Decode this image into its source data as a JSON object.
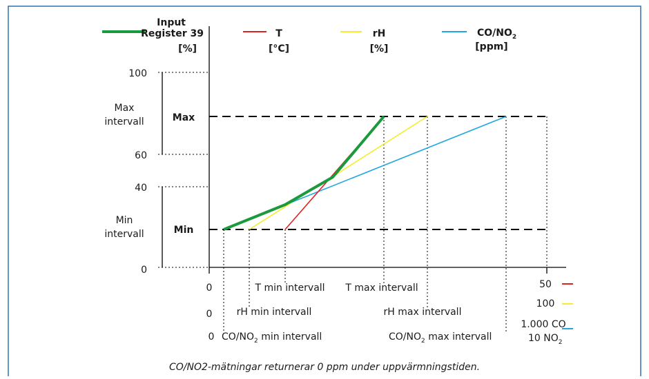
{
  "header": {
    "input_label": [
      "Input",
      "Register 39",
      "[%]"
    ],
    "t_label": [
      "T",
      "[°C]"
    ],
    "rh_label": [
      "rH",
      "[%]"
    ],
    "co_label_main": "CO/NO",
    "co_label_sub": "2",
    "co_unit": "[ppm]"
  },
  "y_axis": {
    "tick_100": "100",
    "tick_60": "60",
    "tick_40": "40",
    "tick_0": "0",
    "max_interval": [
      "Max",
      "intervall"
    ],
    "min_interval": [
      "Min",
      "intervall"
    ],
    "max_label": "Max",
    "min_label": "Min"
  },
  "x_axis": {
    "row1_zero": "0",
    "row2_zero": "0",
    "row3_zero": "0",
    "t_min": "T min intervall",
    "t_max": "T max intervall",
    "rh_min": "rH min intervall",
    "rh_max": "rH max intervall",
    "co_min_a": "CO/NO",
    "co_min_sub": "2",
    "co_min_b": " min intervall",
    "co_max_a": "CO/NO",
    "co_max_sub": "2",
    "co_max_b": " max intervall",
    "legend_t": "50",
    "legend_rh": "100",
    "legend_co1": "1.000 CO",
    "legend_co2a": "10 NO",
    "legend_co2sub": "2"
  },
  "caption": "CO/NO2-mätningar returnerar 0 ppm under uppvärmningstiden.",
  "colors": {
    "green": "#1a9a3c",
    "red": "#e02020",
    "yellow": "#f5ec2a",
    "blue": "#1ea6e0",
    "frame": "#2f6fb3"
  },
  "chart_data": {
    "type": "line",
    "series": [
      {
        "name": "Register 39",
        "points": [
          [
            "CO/NO2 min",
            "Min"
          ],
          [
            "",
            ""
          ],
          [
            "",
            ""
          ],
          [
            "T max",
            "Max"
          ]
        ]
      },
      {
        "name": "T",
        "points": [
          [
            "T min",
            "Min"
          ],
          [
            "T max",
            "Max"
          ]
        ]
      },
      {
        "name": "rH",
        "points": [
          [
            "rH min",
            "Min"
          ],
          [
            "rH max",
            "Max"
          ]
        ]
      },
      {
        "name": "CO/NO2",
        "points": [
          [
            "CO/NO2 min",
            "Min"
          ],
          [
            "CO/NO2 max",
            "Max"
          ]
        ]
      }
    ],
    "y_ticks": [
      0,
      40,
      60,
      100
    ]
  }
}
